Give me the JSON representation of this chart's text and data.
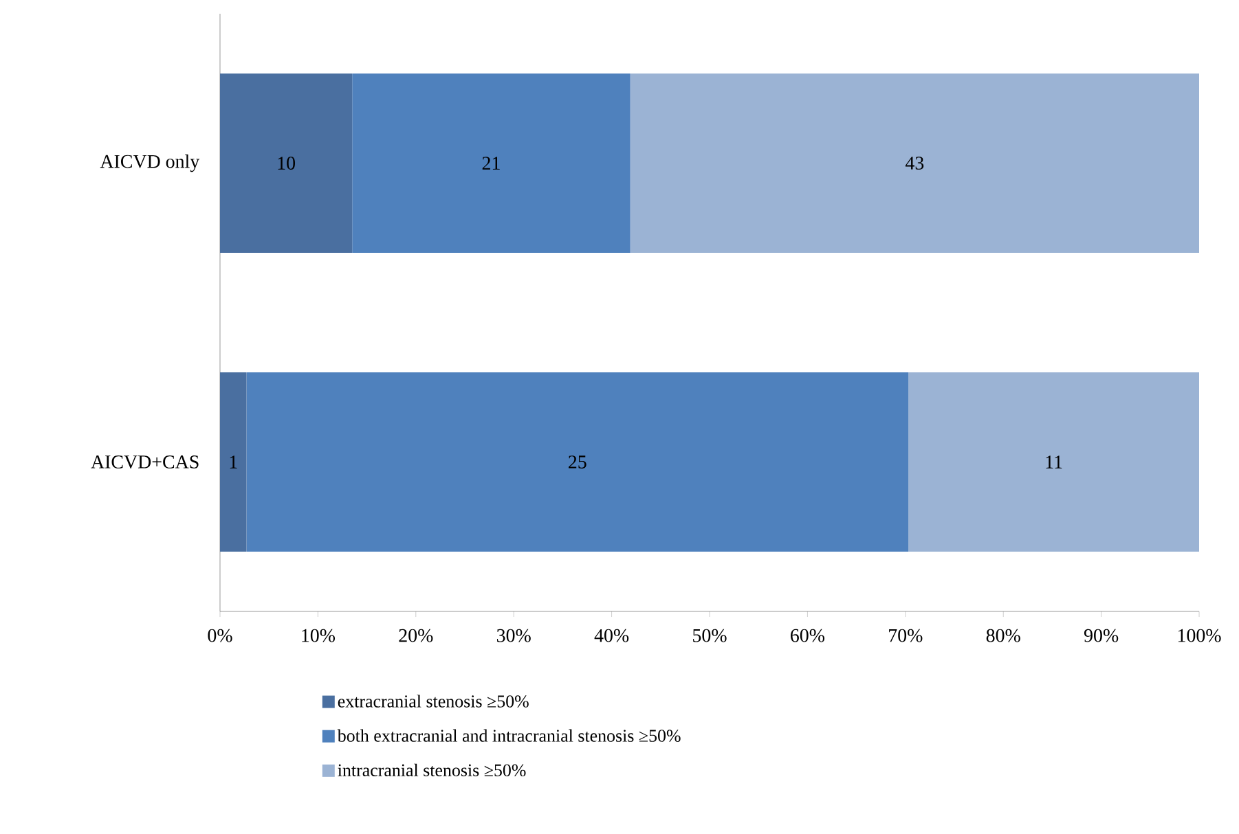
{
  "chart_data": {
    "type": "bar",
    "orientation": "horizontal",
    "stacked": true,
    "categories": [
      "AICVD only",
      "AICVD+CAS"
    ],
    "series": [
      {
        "name": "extracranial stenosis ≥50%",
        "color": "#4a6fa0",
        "values": [
          13.5,
          2.7
        ]
      },
      {
        "name": "both extracranial and intracranial stenosis ≥50%",
        "color": "#4f81bd",
        "values": [
          28.4,
          67.6
        ]
      },
      {
        "name": "intracranial stenosis ≥50%",
        "color": "#9bb3d4",
        "values": [
          58.1,
          29.7
        ]
      }
    ],
    "annotations": [
      "10",
      "21",
      "43",
      "1",
      "25",
      "11"
    ],
    "xlim": [
      0,
      100
    ],
    "xticks": [
      {
        "value": 0,
        "label": "0%"
      },
      {
        "value": 10,
        "label": "10%"
      },
      {
        "value": 20,
        "label": "20%"
      },
      {
        "value": 30,
        "label": "30%"
      },
      {
        "value": 40,
        "label": "40%"
      },
      {
        "value": 50,
        "label": "50%"
      },
      {
        "value": 60,
        "label": "60%"
      },
      {
        "value": 70,
        "label": "70%"
      },
      {
        "value": 80,
        "label": "80%"
      },
      {
        "value": 90,
        "label": "90%"
      },
      {
        "value": 100,
        "label": "100%"
      }
    ],
    "legend": "bottom",
    "grid": false
  }
}
